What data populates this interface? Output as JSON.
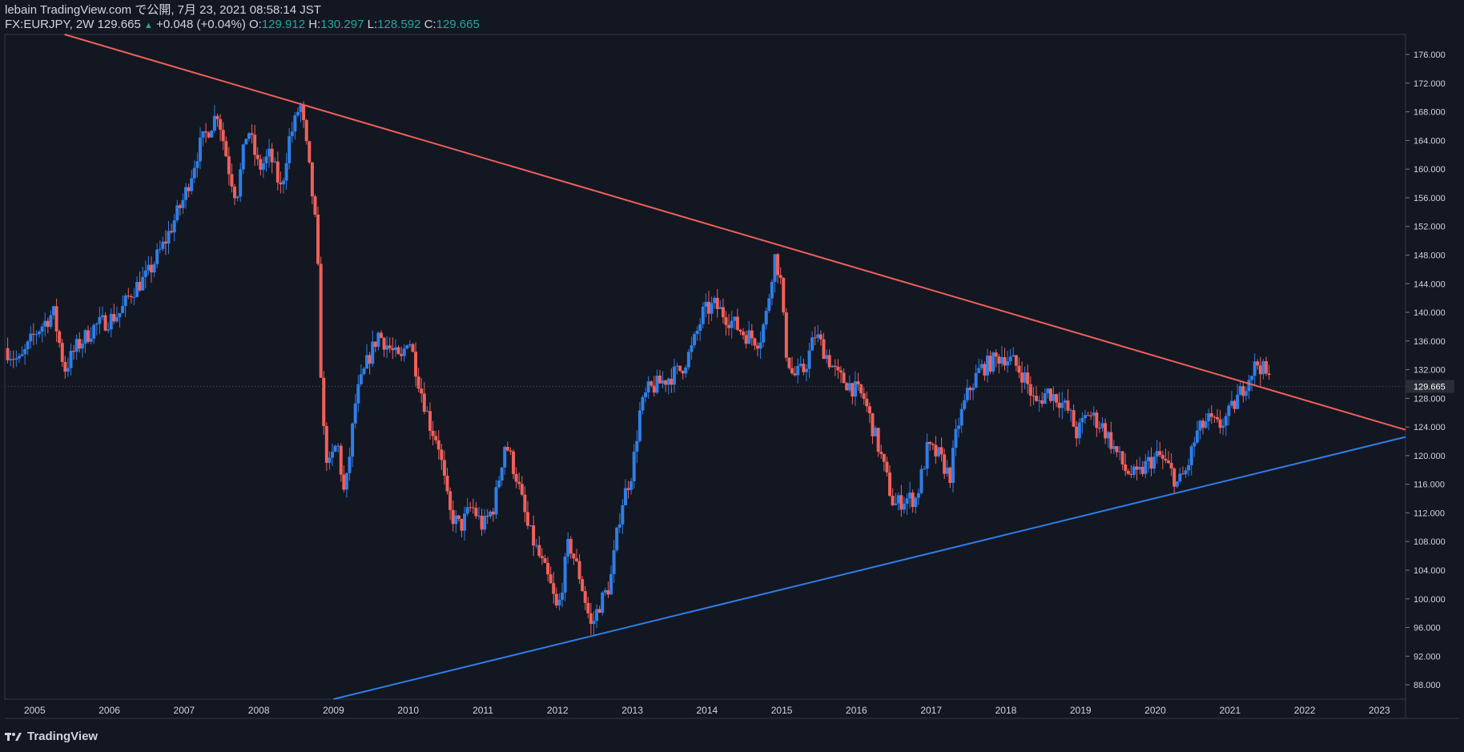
{
  "header": {
    "line1": "lebain TradingView.com で公開, 7月 23, 2021 08:58:14 JST",
    "symbol": "FX:EURJPY, 2W",
    "last": "129.665",
    "change_arrow": "▲",
    "change": "+0.048 (+0.04%)",
    "o_label": "O:",
    "o_value": "129.912",
    "h_label": "H:",
    "h_value": "130.297",
    "l_label": "L:",
    "l_value": "128.592",
    "c_label": "C:",
    "c_value": "129.665"
  },
  "brand": {
    "name": "TradingView"
  },
  "colors": {
    "background": "#131722",
    "up": "#2f7ee8",
    "down": "#f0605a",
    "resistance": "#f0605a",
    "support": "#2f7ee8",
    "text": "#d1d4dc",
    "teal": "#26a69a"
  },
  "chart_data": {
    "type": "candlestick",
    "symbol": "FX:EURJPY",
    "timeframe": "2W",
    "last_price": 129.665,
    "xlim": [
      2004.6,
      2023.35
    ],
    "ylim": [
      86.0,
      178.8
    ],
    "y_ticks": [
      88,
      92,
      96,
      100,
      104,
      108,
      112,
      116,
      120,
      124,
      128,
      132,
      136,
      140,
      144,
      148,
      152,
      156,
      160,
      164,
      168,
      172,
      176
    ],
    "y_tick_labels": [
      "88.000",
      "92.000",
      "96.000",
      "100.000",
      "104.000",
      "108.000",
      "112.000",
      "116.000",
      "120.000",
      "124.000",
      "128.000",
      "132.000",
      "136.000",
      "140.000",
      "144.000",
      "148.000",
      "152.000",
      "156.000",
      "160.000",
      "164.000",
      "168.000",
      "172.000",
      "176.000"
    ],
    "x_ticks": [
      2005,
      2006,
      2007,
      2008,
      2009,
      2010,
      2011,
      2012,
      2013,
      2014,
      2015,
      2016,
      2017,
      2018,
      2019,
      2020,
      2021,
      2022,
      2023
    ],
    "x_tick_labels": [
      "2005",
      "2006",
      "2007",
      "2008",
      "2009",
      "2010",
      "2011",
      "2012",
      "2013",
      "2014",
      "2015",
      "2016",
      "2017",
      "2018",
      "2019",
      "2020",
      "2021",
      "2022",
      "2023"
    ],
    "price_path": [
      [
        2004.6,
        135
      ],
      [
        2004.8,
        133
      ],
      [
        2005.0,
        137
      ],
      [
        2005.25,
        140
      ],
      [
        2005.4,
        132
      ],
      [
        2005.55,
        135
      ],
      [
        2005.8,
        138
      ],
      [
        2006.0,
        139
      ],
      [
        2006.15,
        140
      ],
      [
        2006.3,
        143
      ],
      [
        2006.5,
        145
      ],
      [
        2006.75,
        150
      ],
      [
        2007.0,
        156
      ],
      [
        2007.2,
        163
      ],
      [
        2007.45,
        168
      ],
      [
        2007.6,
        160
      ],
      [
        2007.7,
        156
      ],
      [
        2007.85,
        166
      ],
      [
        2008.0,
        160
      ],
      [
        2008.15,
        162
      ],
      [
        2008.3,
        157
      ],
      [
        2008.4,
        164
      ],
      [
        2008.5,
        167
      ],
      [
        2008.55,
        169.5
      ],
      [
        2008.6,
        166
      ],
      [
        2008.7,
        158
      ],
      [
        2008.78,
        150
      ],
      [
        2008.85,
        125
      ],
      [
        2008.93,
        118
      ],
      [
        2009.05,
        122
      ],
      [
        2009.15,
        114
      ],
      [
        2009.3,
        128
      ],
      [
        2009.45,
        133
      ],
      [
        2009.6,
        137
      ],
      [
        2009.75,
        135
      ],
      [
        2009.9,
        133
      ],
      [
        2010.0,
        137
      ],
      [
        2010.15,
        130
      ],
      [
        2010.3,
        124
      ],
      [
        2010.4,
        122
      ],
      [
        2010.55,
        112
      ],
      [
        2010.7,
        110
      ],
      [
        2010.85,
        113
      ],
      [
        2011.0,
        110
      ],
      [
        2011.15,
        113
      ],
      [
        2011.3,
        122
      ],
      [
        2011.45,
        117
      ],
      [
        2011.6,
        110
      ],
      [
        2011.75,
        106
      ],
      [
        2011.9,
        102
      ],
      [
        2012.0,
        98
      ],
      [
        2012.15,
        108
      ],
      [
        2012.3,
        103
      ],
      [
        2012.45,
        96
      ],
      [
        2012.55,
        99
      ],
      [
        2012.7,
        102
      ],
      [
        2012.85,
        113
      ],
      [
        2013.0,
        118
      ],
      [
        2013.1,
        126
      ],
      [
        2013.2,
        129
      ],
      [
        2013.35,
        130
      ],
      [
        2013.5,
        131
      ],
      [
        2013.65,
        132
      ],
      [
        2013.8,
        135
      ],
      [
        2013.95,
        140
      ],
      [
        2014.1,
        141
      ],
      [
        2014.3,
        139
      ],
      [
        2014.5,
        137
      ],
      [
        2014.7,
        136
      ],
      [
        2014.8,
        140
      ],
      [
        2014.9,
        148
      ],
      [
        2014.98,
        145
      ],
      [
        2015.05,
        135
      ],
      [
        2015.15,
        131
      ],
      [
        2015.3,
        132
      ],
      [
        2015.45,
        137
      ],
      [
        2015.6,
        134
      ],
      [
        2015.75,
        131
      ],
      [
        2015.9,
        130
      ],
      [
        2016.1,
        128
      ],
      [
        2016.3,
        121
      ],
      [
        2016.5,
        113
      ],
      [
        2016.65,
        114
      ],
      [
        2016.8,
        114
      ],
      [
        2016.95,
        121
      ],
      [
        2017.1,
        120
      ],
      [
        2017.25,
        117
      ],
      [
        2017.35,
        124
      ],
      [
        2017.5,
        129
      ],
      [
        2017.65,
        132
      ],
      [
        2017.8,
        133
      ],
      [
        2017.95,
        134
      ],
      [
        2018.1,
        133
      ],
      [
        2018.25,
        131
      ],
      [
        2018.4,
        127
      ],
      [
        2018.55,
        129
      ],
      [
        2018.7,
        128
      ],
      [
        2018.85,
        126
      ],
      [
        2018.95,
        123
      ],
      [
        2019.1,
        126
      ],
      [
        2019.3,
        124
      ],
      [
        2019.45,
        121
      ],
      [
        2019.6,
        118
      ],
      [
        2019.75,
        117
      ],
      [
        2019.9,
        119
      ],
      [
        2020.05,
        120
      ],
      [
        2020.2,
        118
      ],
      [
        2020.3,
        116
      ],
      [
        2020.42,
        118
      ],
      [
        2020.55,
        123
      ],
      [
        2020.7,
        125
      ],
      [
        2020.85,
        124
      ],
      [
        2021.0,
        126
      ],
      [
        2021.15,
        129
      ],
      [
        2021.3,
        132
      ],
      [
        2021.38,
        133
      ],
      [
        2021.5,
        131
      ],
      [
        2021.56,
        129.665
      ]
    ],
    "resistance_line": {
      "from": [
        2005.4,
        178.8
      ],
      "to": [
        2023.35,
        123.6
      ]
    },
    "support_line": {
      "from": [
        2009.0,
        86.0
      ],
      "to": [
        2023.35,
        122.6
      ]
    }
  }
}
